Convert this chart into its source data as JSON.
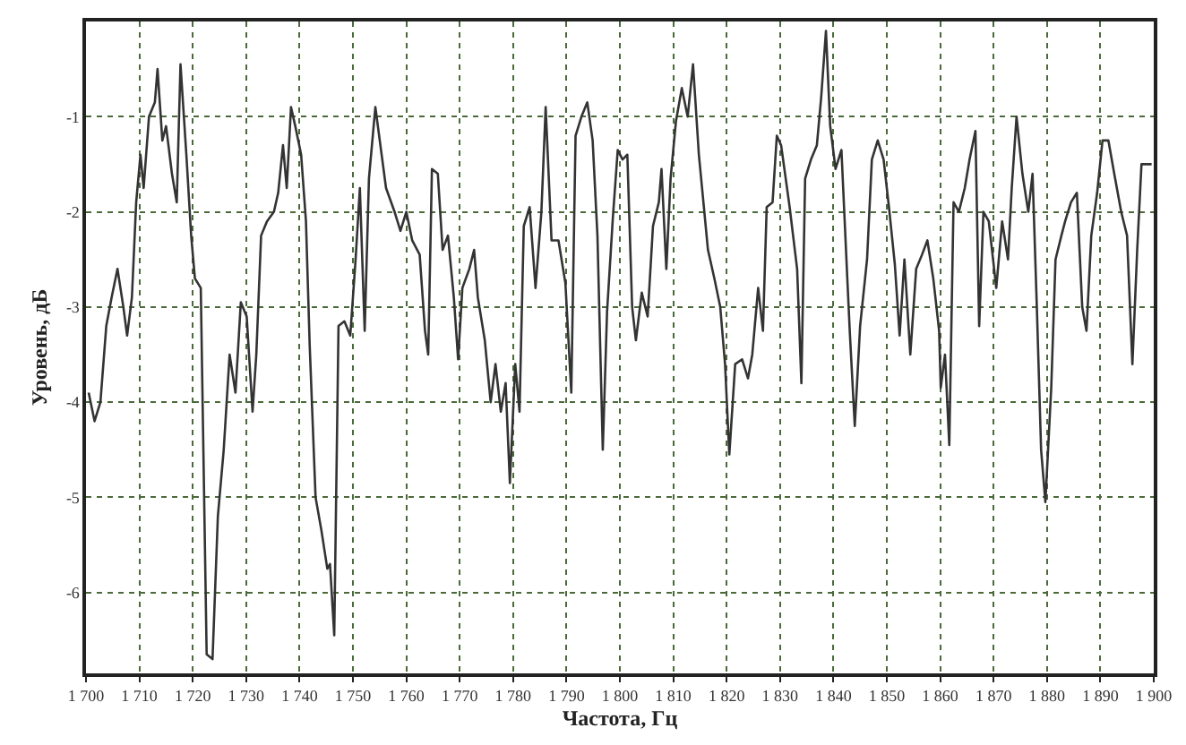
{
  "chart_data": {
    "type": "line",
    "xlabel": "Частота, Гц",
    "ylabel": "Уровень, дБ",
    "xlim": [
      1700,
      1900
    ],
    "ylim": [
      -6.85,
      0
    ],
    "xticks": [
      {
        "value": 1700,
        "label": "1 700"
      },
      {
        "value": 1710,
        "label": "1 710"
      },
      {
        "value": 1720,
        "label": "1 720"
      },
      {
        "value": 1730,
        "label": "1 730"
      },
      {
        "value": 1740,
        "label": "1 740"
      },
      {
        "value": 1750,
        "label": "1 750"
      },
      {
        "value": 1760,
        "label": "1 760"
      },
      {
        "value": 1770,
        "label": "1 770"
      },
      {
        "value": 1780,
        "label": "1 780"
      },
      {
        "value": 1790,
        "label": "1 790"
      },
      {
        "value": 1800,
        "label": "1 800"
      },
      {
        "value": 1810,
        "label": "1 810"
      },
      {
        "value": 1820,
        "label": "1 820"
      },
      {
        "value": 1830,
        "label": "1 830"
      },
      {
        "value": 1840,
        "label": "1 840"
      },
      {
        "value": 1850,
        "label": "1 850"
      },
      {
        "value": 1860,
        "label": "1 860"
      },
      {
        "value": 1870,
        "label": "1 870"
      },
      {
        "value": 1880,
        "label": "1 880"
      },
      {
        "value": 1890,
        "label": "1 890"
      },
      {
        "value": 1900,
        "label": "1 900"
      }
    ],
    "yticks": [
      -6,
      -5,
      -4,
      -3,
      -2,
      -1
    ],
    "grid": true,
    "marker": "none",
    "line_style": "solid",
    "series": [
      {
        "color": "#333333",
        "x": [
          1700.5,
          1701.6,
          1702.7,
          1703.8,
          1704.8,
          1705.9,
          1707,
          1707.7,
          1708.6,
          1709.4,
          1710.2,
          1710.8,
          1711.8,
          1712.9,
          1713.4,
          1714.3,
          1715,
          1716.1,
          1717,
          1717.7,
          1718.8,
          1719.7,
          1720.4,
          1721.5,
          1722.6,
          1723.7,
          1724.7,
          1725.8,
          1726.9,
          1728,
          1729,
          1730.1,
          1731.2,
          1731.9,
          1732.8,
          1733.9,
          1735.2,
          1736,
          1736.9,
          1737.6,
          1738.4,
          1739.2,
          1740.3,
          1741.2,
          1741.9,
          1743,
          1744.1,
          1745.2,
          1745.7,
          1746.5,
          1747.3,
          1748.4,
          1749.5,
          1750.5,
          1751.3,
          1752.2,
          1753,
          1754.2,
          1756.2,
          1757.8,
          1758.9,
          1760,
          1761.1,
          1762.5,
          1763.5,
          1764.1,
          1764.8,
          1765.9,
          1766.8,
          1767.8,
          1768.9,
          1769.7,
          1770.5,
          1771.8,
          1772.7,
          1773.4,
          1774.7,
          1775.8,
          1776.7,
          1777.7,
          1778.6,
          1779.4,
          1780.4,
          1781.2,
          1782,
          1783.1,
          1784.2,
          1785.3,
          1786.1,
          1787.2,
          1788.5,
          1789.8,
          1790.9,
          1791.7,
          1792.8,
          1793.9,
          1794.9,
          1795.8,
          1796.8,
          1797.6,
          1798.7,
          1799.6,
          1800.5,
          1801.4,
          1802.3,
          1803,
          1804.1,
          1805.2,
          1806.2,
          1807.3,
          1807.8,
          1808.7,
          1809.5,
          1810.5,
          1811.6,
          1812.7,
          1813.7,
          1814.8,
          1816.5,
          1817.7,
          1818.8,
          1819.7,
          1820.5,
          1821.6,
          1822.9,
          1824,
          1824.8,
          1825.9,
          1826.8,
          1827.5,
          1828.6,
          1829.4,
          1830.2,
          1831.8,
          1833.2,
          1834,
          1834.7,
          1835.8,
          1836.9,
          1837.7,
          1838.6,
          1839.4,
          1840.4,
          1841.5,
          1842.6,
          1843.1,
          1844,
          1845,
          1846.3,
          1847.2,
          1848.3,
          1849.4,
          1850.4,
          1851.5,
          1852.4,
          1853.3,
          1854.4,
          1855.5,
          1856.6,
          1857.6,
          1858.7,
          1859.8,
          1860.1,
          1860.9,
          1861.7,
          1862.5,
          1863.5,
          1864.6,
          1865.5,
          1866.6,
          1867.3,
          1868.1,
          1869.1,
          1870.5,
          1871.6,
          1872.7,
          1873.4,
          1874.3,
          1875.4,
          1876.5,
          1877.3,
          1878.1,
          1878.9,
          1879.7,
          1880.8,
          1881.6,
          1882.7,
          1883.4,
          1884.5,
          1885.6,
          1886.6,
          1887.4,
          1888.3,
          1889.4,
          1890.4,
          1891.5,
          1892.6,
          1893.9,
          1895,
          1896,
          1896.9,
          1897.7,
          1899.6
        ],
        "values": [
          -3.9,
          -4.2,
          -4.0,
          -3.2,
          -2.9,
          -2.6,
          -3.0,
          -3.3,
          -2.9,
          -1.9,
          -1.4,
          -1.75,
          -1.0,
          -0.85,
          -0.5,
          -1.25,
          -1.1,
          -1.6,
          -1.9,
          -0.45,
          -1.4,
          -2.25,
          -2.7,
          -2.8,
          -6.65,
          -6.7,
          -5.2,
          -4.5,
          -3.5,
          -3.9,
          -2.95,
          -3.1,
          -4.1,
          -3.5,
          -2.25,
          -2.1,
          -2.0,
          -1.8,
          -1.3,
          -1.75,
          -0.9,
          -1.1,
          -1.4,
          -2.1,
          -3.4,
          -5.0,
          -5.35,
          -5.75,
          -5.7,
          -6.45,
          -3.2,
          -3.15,
          -3.3,
          -2.5,
          -1.75,
          -3.25,
          -1.65,
          -0.9,
          -1.75,
          -2.0,
          -2.2,
          -2.0,
          -2.3,
          -2.45,
          -3.25,
          -3.5,
          -1.55,
          -1.6,
          -2.4,
          -2.25,
          -2.9,
          -3.55,
          -2.8,
          -2.6,
          -2.4,
          -2.9,
          -3.35,
          -4.0,
          -3.6,
          -4.1,
          -3.8,
          -4.85,
          -3.6,
          -4.1,
          -2.15,
          -1.95,
          -2.8,
          -2.0,
          -0.9,
          -2.3,
          -2.3,
          -2.75,
          -3.9,
          -1.2,
          -1.0,
          -0.85,
          -1.25,
          -2.25,
          -4.5,
          -3.05,
          -2.05,
          -1.35,
          -1.45,
          -1.4,
          -3.0,
          -3.35,
          -2.85,
          -3.1,
          -2.15,
          -1.9,
          -1.55,
          -2.6,
          -1.65,
          -1.05,
          -0.7,
          -1.0,
          -0.45,
          -1.4,
          -2.4,
          -2.7,
          -3.0,
          -3.6,
          -4.55,
          -3.6,
          -3.55,
          -3.75,
          -3.5,
          -2.8,
          -3.25,
          -1.95,
          -1.9,
          -1.2,
          -1.3,
          -1.95,
          -2.6,
          -3.8,
          -1.65,
          -1.45,
          -1.3,
          -0.8,
          -0.1,
          -1.1,
          -1.55,
          -1.35,
          -2.7,
          -3.3,
          -4.25,
          -3.2,
          -2.5,
          -1.45,
          -1.25,
          -1.45,
          -1.95,
          -2.55,
          -3.3,
          -2.5,
          -3.5,
          -2.6,
          -2.45,
          -2.3,
          -2.7,
          -3.25,
          -3.85,
          -3.5,
          -4.45,
          -1.9,
          -2.0,
          -1.75,
          -1.45,
          -1.15,
          -3.2,
          -2.0,
          -2.1,
          -2.8,
          -2.1,
          -2.5,
          -1.75,
          -1.0,
          -1.6,
          -2.0,
          -1.6,
          -3.0,
          -4.5,
          -5.05,
          -3.85,
          -2.5,
          -2.25,
          -2.1,
          -1.9,
          -1.8,
          -3.0,
          -3.25,
          -2.25,
          -1.8,
          -1.25,
          -1.25,
          -1.6,
          -2.0,
          -2.25,
          -3.6,
          -2.4,
          -1.5,
          -1.5
        ]
      }
    ]
  }
}
